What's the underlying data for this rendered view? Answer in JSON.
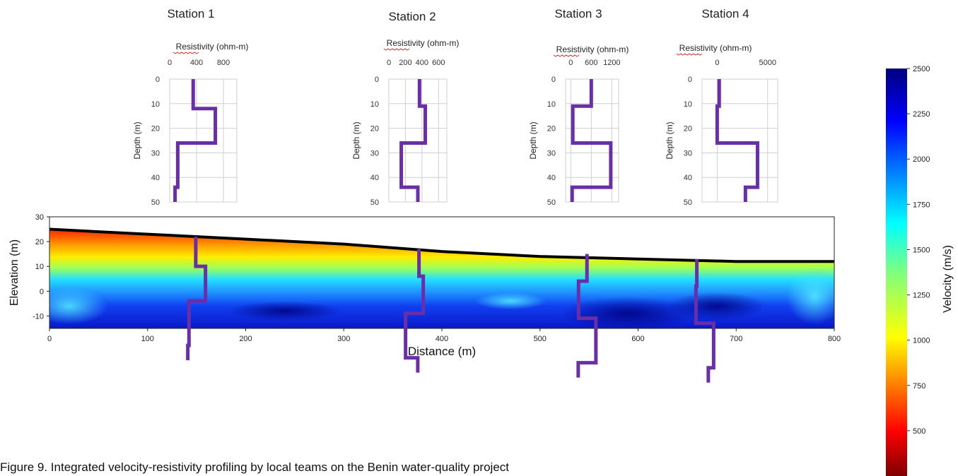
{
  "caption": "Figure 9. Integrated velocity-resistivity profiling by local teams on the Benin water-quality project",
  "chart_data": [
    {
      "type": "heatmap",
      "xlabel": "Distance (m)",
      "ylabel": "Elevation (m)",
      "xlim": [
        0,
        800
      ],
      "ylim": [
        -15,
        30
      ],
      "xticks": [
        0,
        100,
        200,
        300,
        400,
        500,
        600,
        700,
        800
      ],
      "yticks": [
        30,
        20,
        10,
        0,
        -10
      ],
      "surface": {
        "x": [
          0,
          100,
          200,
          300,
          400,
          500,
          600,
          700,
          760,
          800
        ],
        "y": [
          25,
          23,
          21,
          19,
          16,
          14,
          13,
          12,
          12,
          12
        ]
      },
      "colorbar": {
        "label": "Velocity (m/s)",
        "range": [
          250,
          2500
        ],
        "ticks": [
          500,
          750,
          1000,
          1250,
          1500,
          1750,
          2000,
          2250,
          2500
        ],
        "colormap": "jet"
      }
    },
    {
      "type": "line",
      "title": "Station 1",
      "xlabel": "Resistivity (ohm-m)",
      "ylabel": "Depth (m)",
      "xticks": [
        0,
        400,
        800
      ],
      "xlim": [
        0,
        1000
      ],
      "ylim": [
        50,
        0
      ],
      "yticks": [
        0,
        10,
        20,
        30,
        40,
        50
      ],
      "series": [
        {
          "x": [
            350,
            350,
            680,
            680,
            120,
            120,
            80,
            80
          ],
          "y": [
            0,
            12,
            12,
            26,
            26,
            44,
            44,
            50
          ]
        }
      ],
      "profile_x": 150,
      "profile_top": 22
    },
    {
      "type": "line",
      "title": "Station 2",
      "xlabel": "Resistivity (ohm-m)",
      "ylabel": "Depth (m)",
      "xticks": [
        0,
        200,
        400,
        600
      ],
      "xlim": [
        0,
        700
      ],
      "ylim": [
        50,
        0
      ],
      "yticks": [
        0,
        10,
        20,
        30,
        40,
        50
      ],
      "series": [
        {
          "x": [
            370,
            370,
            440,
            440,
            150,
            150,
            350,
            350
          ],
          "y": [
            0,
            11,
            11,
            26,
            26,
            44,
            44,
            50
          ]
        }
      ],
      "profile_x": 372,
      "profile_top": 17
    },
    {
      "type": "line",
      "title": "Station 3",
      "xlabel": "Resistivity (ohm-m)",
      "ylabel": "Depth (m)",
      "xticks": [
        0,
        600,
        1200
      ],
      "xlim": [
        -150,
        1400
      ],
      "ylim": [
        50,
        0
      ],
      "yticks": [
        0,
        10,
        20,
        30,
        40,
        50
      ],
      "series": [
        {
          "x": [
            600,
            600,
            60,
            60,
            1170,
            1170,
            40,
            40
          ],
          "y": [
            0,
            11,
            11,
            26,
            26,
            44,
            44,
            50
          ]
        }
      ],
      "profile_x": 548,
      "profile_top": 15
    },
    {
      "type": "line",
      "title": "Station 4",
      "xlabel": "Resistivity (ohm-m)",
      "ylabel": "Depth (m)",
      "xticks": [
        0,
        5000
      ],
      "xlim": [
        -1500,
        6000
      ],
      "ylim": [
        50,
        0
      ],
      "yticks": [
        0,
        10,
        20,
        30,
        40,
        50
      ],
      "series": [
        {
          "x": [
            200,
            200,
            0,
            0,
            4000,
            4000,
            2800,
            2800
          ],
          "y": [
            0,
            11,
            11,
            26,
            26,
            44,
            44,
            50
          ]
        }
      ],
      "profile_x": 668,
      "profile_top": 13
    }
  ]
}
